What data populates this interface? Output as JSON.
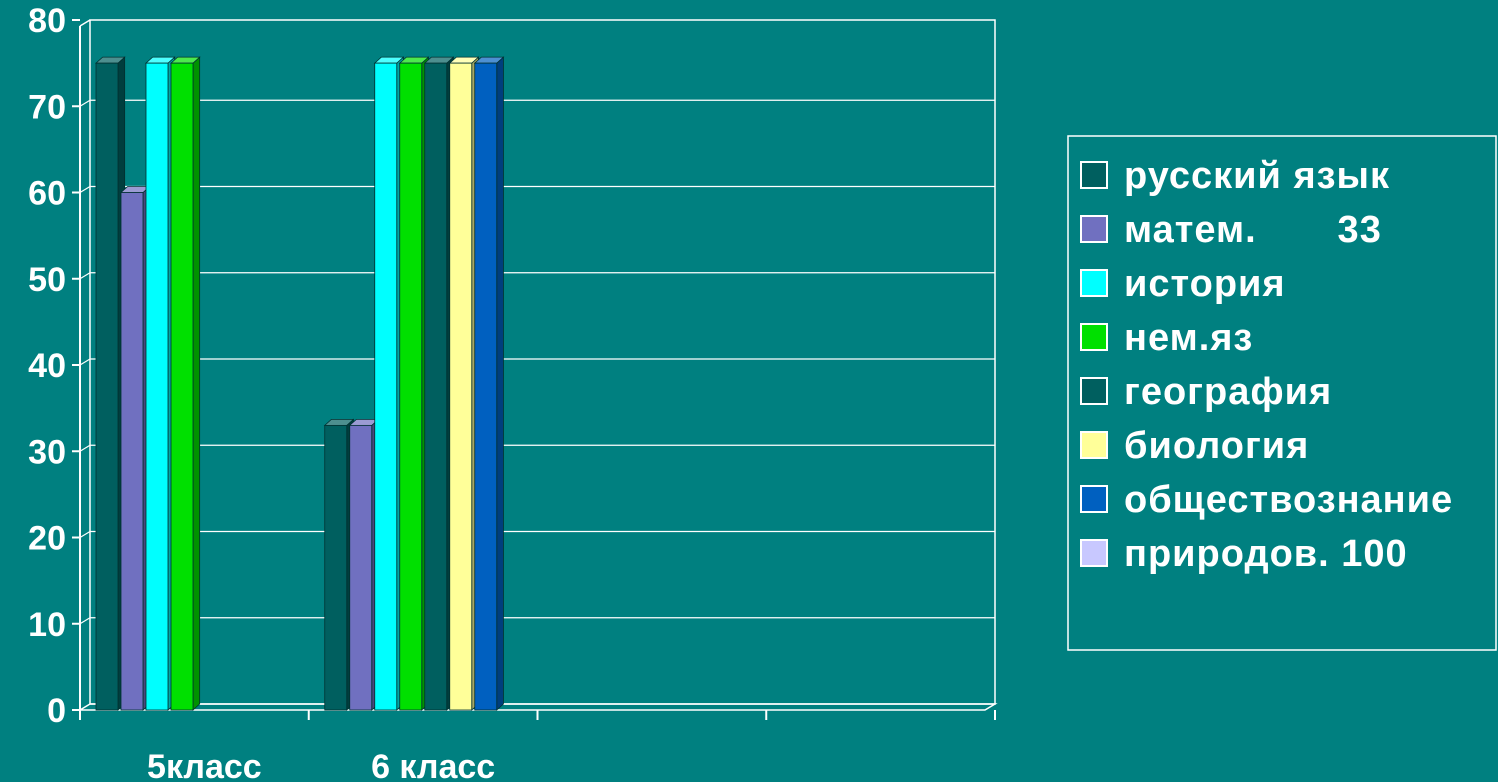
{
  "chart_data": {
    "type": "bar",
    "categories": [
      "5класс",
      "6 класс",
      "",
      ""
    ],
    "ylim": [
      0,
      80
    ],
    "yticks": [
      0,
      10,
      20,
      30,
      40,
      50,
      60,
      70,
      80
    ],
    "grid": true,
    "legend_position": "right",
    "series": [
      {
        "name": "русский язык",
        "color": "#005f5f",
        "values": [
          75,
          33,
          null,
          null
        ]
      },
      {
        "name": "матем.       33",
        "color": "#7070c0",
        "values": [
          60,
          33,
          null,
          null
        ]
      },
      {
        "name": "история",
        "color": "#00ffff",
        "values": [
          75,
          75,
          null,
          null
        ]
      },
      {
        "name": "нем.яз",
        "color": "#00e000",
        "values": [
          75,
          75,
          null,
          null
        ]
      },
      {
        "name": "география",
        "color": "#005f5f",
        "values": [
          null,
          75,
          null,
          null
        ]
      },
      {
        "name": "биология",
        "color": "#ffff99",
        "values": [
          null,
          75,
          null,
          null
        ]
      },
      {
        "name": "обществознание",
        "color": "#0060c0",
        "values": [
          null,
          75,
          null,
          null
        ]
      },
      {
        "name": "природов. 100",
        "color": "#c8c8ff",
        "values": [
          null,
          null,
          null,
          null
        ]
      }
    ]
  }
}
